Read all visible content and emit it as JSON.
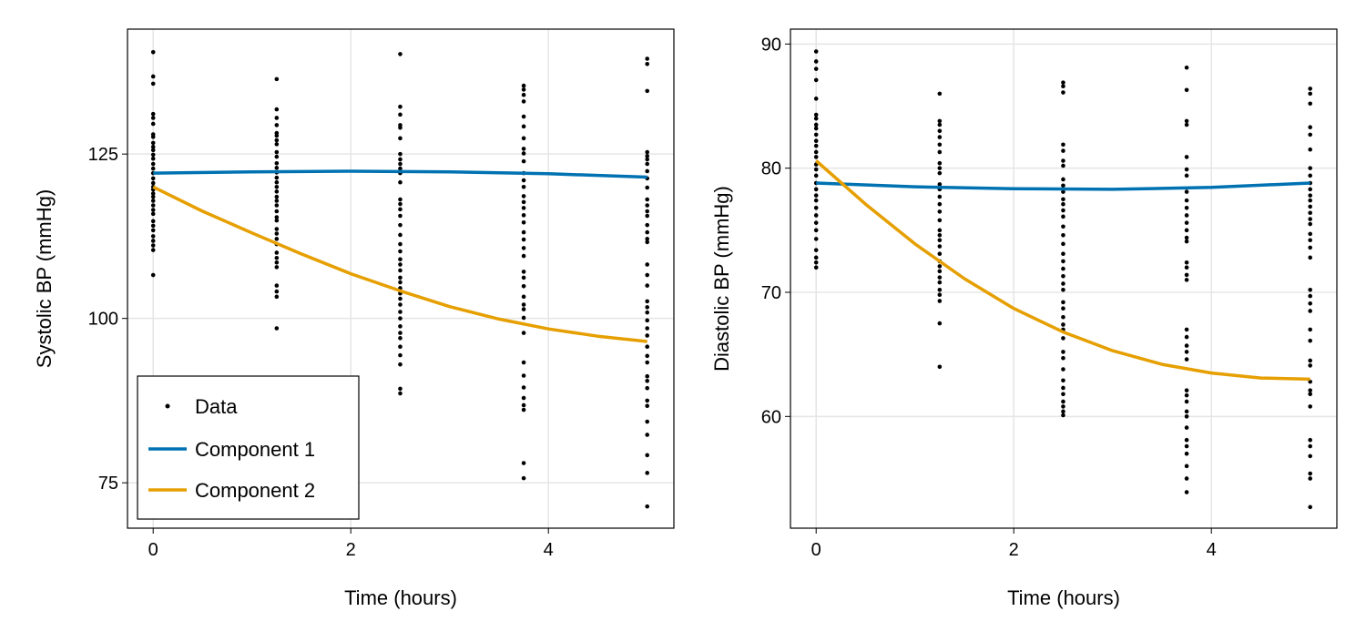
{
  "chart_data": [
    {
      "type": "scatter",
      "xlabel": "Time (hours)",
      "ylabel": "Systolic BP (mmHg)",
      "xlim": [
        -0.26,
        5.27
      ],
      "ylim": [
        68.1,
        144.0
      ],
      "xticks": [
        0,
        2,
        4
      ],
      "yticks": [
        75,
        100,
        125
      ],
      "grid": true,
      "legend": {
        "placement": "bottom-left",
        "entries": [
          "Data",
          "Component 1",
          "Component 2"
        ]
      },
      "points": [
        {
          "x": 0,
          "y": [
            140.5,
            136.8,
            135.7,
            131.1,
            130.5,
            129.6,
            128,
            127.6,
            126.7,
            126.1,
            125.6,
            124.9,
            124.3,
            123.5,
            122.8,
            122.1,
            121.3,
            120.6,
            120,
            119.6,
            119,
            118.5,
            117.9,
            117.2,
            116.5,
            115.9,
            114.8,
            114.1,
            113.4,
            112.5,
            111.8,
            111.1,
            110.4,
            106.6
          ]
        },
        {
          "x": 1.25,
          "y": [
            136.4,
            131.8,
            130.5,
            129.4,
            128.2,
            127.8,
            127.1,
            126.5,
            125.3,
            124.6,
            123.6,
            122.9,
            122.2,
            121.4,
            120.7,
            120,
            119.3,
            118.5,
            117.9,
            117.2,
            116.3,
            115.4,
            114.9,
            113.6,
            112.9,
            112.1,
            111.3,
            110,
            109.2,
            108.5,
            107.8,
            105,
            104.1,
            103.3,
            98.5
          ]
        },
        {
          "x": 2.5,
          "y": [
            140.2,
            132.2,
            131,
            129.4,
            129,
            127.4,
            125,
            124.2,
            123.5,
            122.8,
            122.1,
            120.7,
            118.1,
            117.4,
            116.6,
            115.6,
            114.2,
            112.7,
            111.3,
            110.2,
            109,
            108.2,
            107.3,
            106.2,
            105.5,
            104.6,
            103.8,
            103,
            102.1,
            101,
            100,
            98.8,
            97.8,
            97,
            95.7,
            94.4,
            93,
            89.3,
            88.6
          ]
        },
        {
          "x": 3.75,
          "y": [
            135.4,
            134.8,
            134,
            133,
            130.7,
            129.2,
            127.4,
            125.8,
            125.1,
            123.9,
            122.1,
            121,
            120,
            118.6,
            117.7,
            116.8,
            115.7,
            114.6,
            113.1,
            112,
            110.7,
            109.5,
            107.1,
            106.2,
            104.9,
            103.3,
            102.1,
            101.4,
            100.1,
            97.8,
            93.3,
            91.3,
            89.5,
            87.9,
            86.8,
            86.1,
            78,
            75.7
          ]
        },
        {
          "x": 5,
          "y": [
            139.5,
            138.7,
            134.6,
            125.3,
            124.7,
            124.2,
            123.5,
            122.4,
            121.3,
            119.9,
            118.1,
            117.2,
            116.3,
            115.6,
            114.2,
            113.1,
            112.1,
            111.6,
            108.2,
            106.6,
            105,
            102.6,
            101.7,
            100.9,
            99.7,
            98.5,
            97.4,
            95.7,
            94.3,
            93.3,
            91.2,
            90.5,
            89.4,
            87.5,
            86.7,
            84.3,
            82.3,
            79.2,
            76.5,
            71.4
          ]
        }
      ],
      "series": [
        {
          "name": "Component 1",
          "color": "#0072b2",
          "x": [
            0,
            1,
            2,
            3,
            4,
            5
          ],
          "y": [
            122.1,
            122.3,
            122.4,
            122.3,
            122.0,
            121.5
          ]
        },
        {
          "name": "Component 2",
          "color": "#e69f00",
          "x": [
            0,
            0.5,
            1,
            1.5,
            2,
            2.5,
            3,
            3.5,
            4,
            4.5,
            5
          ],
          "y": [
            120,
            116.3,
            113,
            109.8,
            106.8,
            104.2,
            101.8,
            99.9,
            98.4,
            97.3,
            96.5
          ]
        }
      ]
    },
    {
      "type": "scatter",
      "xlabel": "Time (hours)",
      "ylabel": "Diastolic BP (mmHg)",
      "xlim": [
        -0.26,
        5.27
      ],
      "ylim": [
        51.0,
        91.2
      ],
      "xticks": [
        0,
        2,
        4
      ],
      "yticks": [
        60,
        70,
        80,
        90
      ],
      "grid": true,
      "points": [
        {
          "x": 0,
          "y": [
            89.4,
            88.6,
            88,
            87.1,
            85.6,
            84.3,
            84,
            83.5,
            83.2,
            82.7,
            82.2,
            81.8,
            81.3,
            80.9,
            80.3,
            79.9,
            79.4,
            78.8,
            78.3,
            77.8,
            77.4,
            76.8,
            76.2,
            75.6,
            75,
            74.3,
            73.4,
            72.8,
            72.4,
            72
          ]
        },
        {
          "x": 1.25,
          "y": [
            86,
            83.8,
            83.5,
            83,
            82.5,
            81.9,
            81.3,
            80.4,
            80,
            79.6,
            78.7,
            78.3,
            77.7,
            77.1,
            76.5,
            75.8,
            75,
            74.6,
            74.2,
            73.7,
            73.1,
            72.5,
            72.1,
            71.7,
            71.2,
            70.8,
            70.2,
            69.8,
            69.3,
            67.5,
            64
          ]
        },
        {
          "x": 2.5,
          "y": [
            86.9,
            86.6,
            86.1,
            81.9,
            81.4,
            80.6,
            80.2,
            79.1,
            78.6,
            78.1,
            77.5,
            77.1,
            76.6,
            76.1,
            75.3,
            74.6,
            73.9,
            73.1,
            72.5,
            71.9,
            71.3,
            70.7,
            70.2,
            69.2,
            68.7,
            68,
            67.4,
            67,
            66.3,
            65.2,
            64.7,
            63.8,
            62.9,
            62.3,
            61.8,
            61.2,
            60.8,
            60.4,
            60.1
          ]
        },
        {
          "x": 3.75,
          "y": [
            88.1,
            86.3,
            83.8,
            83.5,
            80.9,
            79.9,
            79.4,
            78.1,
            77.4,
            76.8,
            76.2,
            75.6,
            75,
            74.4,
            74.1,
            72.4,
            72,
            71.4,
            71,
            67,
            66.4,
            65.7,
            65.2,
            64.6,
            62.1,
            61.7,
            61.2,
            60.4,
            60,
            59.1,
            58.1,
            57.6,
            57,
            56,
            55,
            53.9
          ]
        },
        {
          "x": 5,
          "y": [
            86.4,
            86,
            85.2,
            83.3,
            82.7,
            81.5,
            80,
            79.4,
            78.8,
            78.3,
            77.8,
            77.4,
            76.9,
            76.4,
            75.9,
            75.5,
            74.7,
            74.2,
            73.6,
            72.8,
            70.2,
            69.7,
            69.1,
            68.5,
            67,
            66.1,
            64.5,
            64.1,
            62.8,
            62.1,
            61.8,
            60.8,
            58.1,
            57.6,
            56.8,
            55.4,
            55,
            52.7
          ]
        }
      ],
      "series": [
        {
          "name": "Component 1",
          "color": "#0072b2",
          "x": [
            0,
            1,
            2,
            3,
            4,
            5
          ],
          "y": [
            78.8,
            78.5,
            78.35,
            78.3,
            78.45,
            78.8
          ]
        },
        {
          "name": "Component 2",
          "color": "#e69f00",
          "x": [
            0,
            0.5,
            1,
            1.5,
            2,
            2.5,
            3,
            3.5,
            4,
            4.5,
            5
          ],
          "y": [
            80.6,
            77.1,
            73.9,
            71.1,
            68.7,
            66.8,
            65.3,
            64.2,
            63.5,
            63.1,
            63.0
          ]
        }
      ]
    }
  ]
}
